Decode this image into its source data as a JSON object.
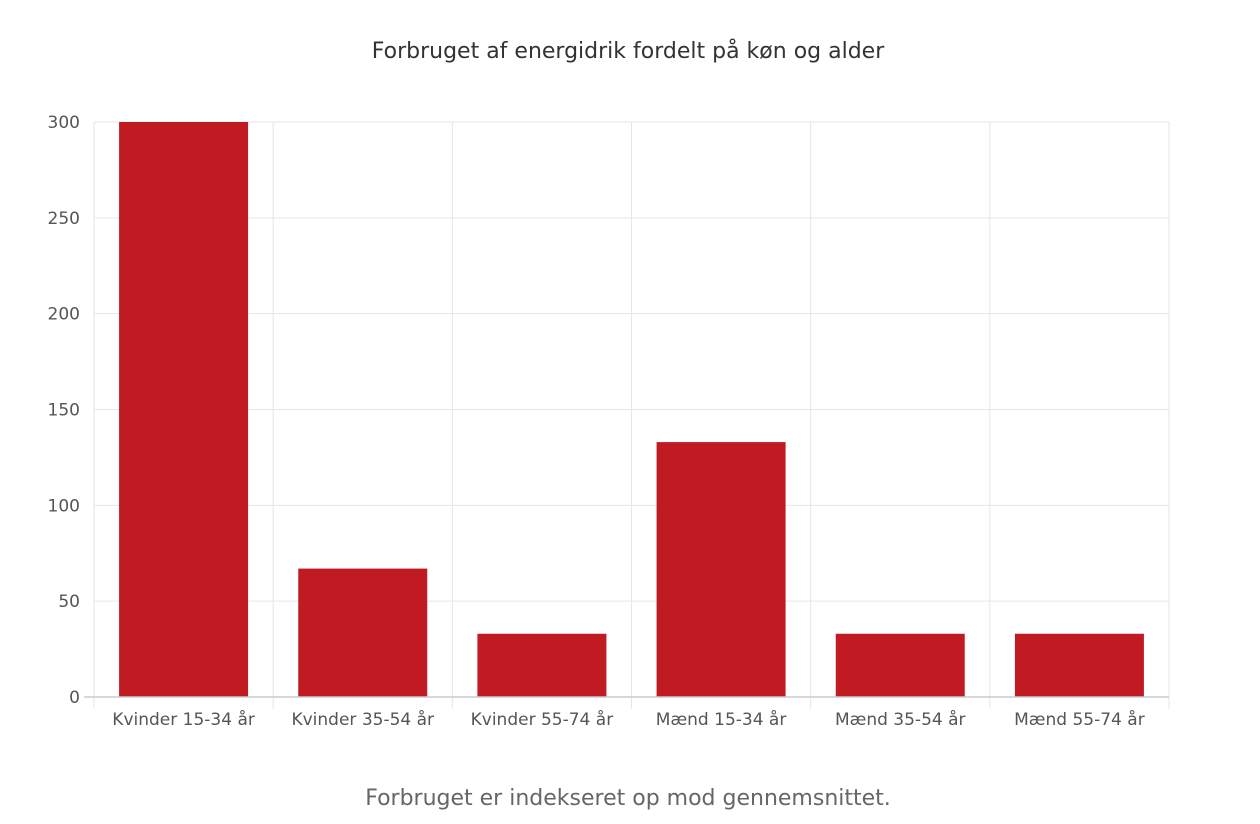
{
  "chart_data": {
    "type": "bar",
    "title": "Forbruget af energidrik fordelt på køn og alder",
    "subtitle": "Forbruget er indekseret op mod gennemsnittet.",
    "categories": [
      "Kvinder 15-34 år",
      "Kvinder 35-54 år",
      "Kvinder 55-74 år",
      "Mænd 15-34 år",
      "Mænd 35-54 år",
      "Mænd 55-74 år"
    ],
    "values": [
      300,
      67,
      33,
      133,
      33,
      33
    ],
    "ylim": [
      0,
      300
    ],
    "yticks": [
      0,
      50,
      100,
      150,
      200,
      250,
      300
    ],
    "ytick_labels": [
      "0",
      "50",
      "100",
      "150",
      "200",
      "250",
      "300"
    ],
    "xlabel": "",
    "ylabel": "",
    "grid": true,
    "legend": "none",
    "bar_color": "#c01b22",
    "grid_color": "#e6e6e6",
    "axis_color": "#cccccc"
  }
}
